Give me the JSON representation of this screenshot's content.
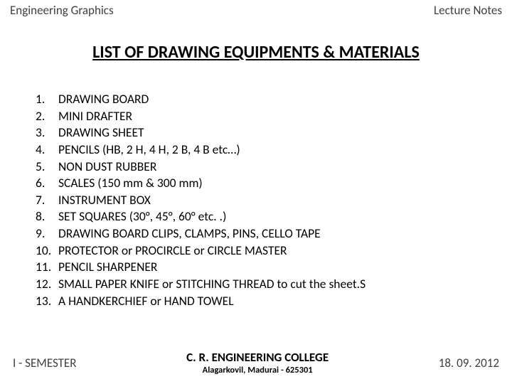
{
  "header": {
    "left": "Engineering  Graphics",
    "right": "Lecture Notes"
  },
  "title": "LIST OF DRAWING EQUIPMENTS & MATERIALS",
  "items": [
    {
      "n": "1.",
      "t": "DRAWING BOARD"
    },
    {
      "n": "2.",
      "t": "MINI DRAFTER"
    },
    {
      "n": "3.",
      "t": "DRAWING SHEET"
    },
    {
      "n": "4.",
      "t": "PENCILS (HB, 2 H, 4 H, 2 B, 4 B etc…)"
    },
    {
      "n": "5.",
      "t": "NON DUST RUBBER"
    },
    {
      "n": "6.",
      "t": "SCALES  (150 mm & 300 mm)"
    },
    {
      "n": "7.",
      "t": " INSTRUMENT BOX"
    },
    {
      "n": "8.",
      "t": "SET SQUARES  (30°, 45°, 60° etc. .)"
    },
    {
      "n": "9.",
      "t": "DRAWING BOARD CLIPS, CLAMPS, PINS, CELLO TAPE"
    },
    {
      "n": "10.",
      "t": "PROTECTOR or PROCIRCLE or CIRCLE MASTER"
    },
    {
      "n": "11.",
      "t": "PENCIL SHARPENER"
    },
    {
      "n": "12.",
      "t": "SMALL PAPER KNIFE or STITCHING THREAD to cut the sheet.S"
    },
    {
      "n": "13.",
      "t": "A HANDKERCHIEF or HAND TOWEL"
    }
  ],
  "footer": {
    "semester": "I - SEMESTER",
    "college_name": "C. R. ENGINEERING COLLEGE",
    "college_loc": "Alagarkovil, Madurai - 625301",
    "date": "18. 09. 2012"
  },
  "style": {
    "bg": "#ffffff",
    "header_color": "#404040",
    "text_color": "#000000",
    "title_fontsize": 24,
    "body_fontsize": 17.5,
    "header_fontsize": 17
  }
}
